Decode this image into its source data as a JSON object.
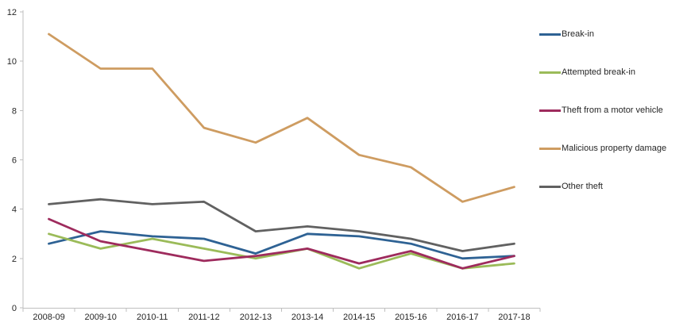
{
  "chart_data": {
    "type": "line",
    "title": "",
    "xlabel": "",
    "ylabel": "",
    "categories": [
      "2008-09",
      "2009-10",
      "2010-11",
      "2011-12",
      "2012-13",
      "2013-14",
      "2014-15",
      "2015-16",
      "2016-17",
      "2017-18"
    ],
    "series": [
      {
        "name": "Break-in",
        "color": "#2E6294",
        "values": [
          2.6,
          3.1,
          2.9,
          2.8,
          2.2,
          3.0,
          2.9,
          2.6,
          2.0,
          2.1
        ]
      },
      {
        "name": "Attempted break-in",
        "color": "#9BBB59",
        "values": [
          3.0,
          2.4,
          2.8,
          2.4,
          2.0,
          2.4,
          1.6,
          2.2,
          1.6,
          1.8
        ]
      },
      {
        "name": "Theft from a motor vehicle",
        "color": "#9E2B5D",
        "values": [
          3.6,
          2.7,
          2.3,
          1.9,
          2.1,
          2.4,
          1.8,
          2.3,
          1.6,
          2.1
        ]
      },
      {
        "name": "Malicious property damage",
        "color": "#CE9C61",
        "values": [
          11.1,
          9.7,
          9.7,
          7.3,
          6.7,
          7.7,
          6.2,
          5.7,
          4.3,
          4.9
        ]
      },
      {
        "name": "Other theft",
        "color": "#616161",
        "values": [
          4.2,
          4.4,
          4.2,
          4.3,
          3.1,
          3.3,
          3.1,
          2.8,
          2.3,
          2.6
        ]
      }
    ],
    "ylim": [
      0,
      12
    ],
    "yticks": [
      0,
      2,
      4,
      6,
      8,
      10,
      12
    ],
    "grid": false,
    "legend_position": "right",
    "axis_color": "#BFBFBF",
    "tick_label_color": "#262626"
  }
}
